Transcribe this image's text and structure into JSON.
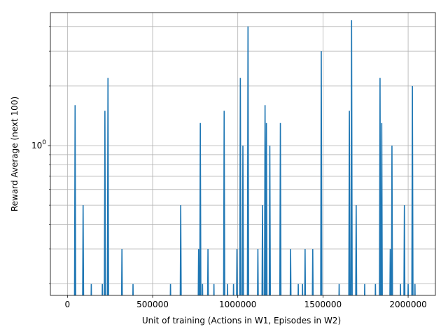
{
  "chart_data": {
    "type": "line",
    "title": "",
    "xlabel": "Unit of training (Actions in W1, Episodes in W2)",
    "ylabel": "Reward Average (next 100)",
    "x_scale": "linear",
    "y_scale": "log",
    "xlim": [
      -100000,
      2160000
    ],
    "ylim": [
      0.175,
      4.7
    ],
    "xticks": [
      0,
      500000,
      1000000,
      1500000,
      2000000
    ],
    "xtick_labels": [
      "0",
      "500000",
      "1000000",
      "1500000",
      "2000000"
    ],
    "yticks_major": [
      1
    ],
    "ytick_major_labels": [
      "10^0"
    ],
    "yticks_minor": [
      0.2,
      0.3,
      0.4,
      0.5,
      0.6,
      0.7,
      0.8,
      0.9,
      2,
      3,
      4
    ],
    "grid": true,
    "colors": {
      "series": "#1f77b4",
      "grid": "#b0b0b0",
      "frame": "#000000"
    },
    "floor": 0.1,
    "series": [
      {
        "name": "",
        "spikes": [
          [
            45000,
            1.6
          ],
          [
            92000,
            0.5
          ],
          [
            140000,
            0.2
          ],
          [
            205000,
            0.2
          ],
          [
            220000,
            1.5
          ],
          [
            238000,
            2.2
          ],
          [
            320000,
            0.3
          ],
          [
            385000,
            0.2
          ],
          [
            605000,
            0.2
          ],
          [
            665000,
            0.5
          ],
          [
            770000,
            0.3
          ],
          [
            780000,
            1.3
          ],
          [
            793000,
            0.2
          ],
          [
            825000,
            0.3
          ],
          [
            860000,
            0.2
          ],
          [
            920000,
            1.5
          ],
          [
            940000,
            0.2
          ],
          [
            975000,
            0.2
          ],
          [
            995000,
            0.3
          ],
          [
            1015000,
            2.2
          ],
          [
            1030000,
            1.0
          ],
          [
            1060000,
            4.0
          ],
          [
            1118000,
            0.3
          ],
          [
            1145000,
            0.5
          ],
          [
            1160000,
            1.6
          ],
          [
            1168000,
            1.3
          ],
          [
            1188000,
            1.0
          ],
          [
            1250000,
            1.3
          ],
          [
            1310000,
            0.3
          ],
          [
            1355000,
            0.2
          ],
          [
            1380000,
            0.2
          ],
          [
            1395000,
            0.3
          ],
          [
            1440000,
            0.3
          ],
          [
            1490000,
            3.0
          ],
          [
            1595000,
            0.2
          ],
          [
            1655000,
            1.5
          ],
          [
            1668000,
            4.3
          ],
          [
            1695000,
            0.5
          ],
          [
            1745000,
            0.2
          ],
          [
            1808000,
            0.2
          ],
          [
            1835000,
            2.2
          ],
          [
            1845000,
            1.3
          ],
          [
            1895000,
            0.3
          ],
          [
            1905000,
            1.0
          ],
          [
            1955000,
            0.2
          ],
          [
            1978000,
            0.5
          ],
          [
            2000000,
            0.2
          ],
          [
            2025000,
            2.0
          ],
          [
            2040000,
            0.2
          ]
        ]
      }
    ]
  }
}
